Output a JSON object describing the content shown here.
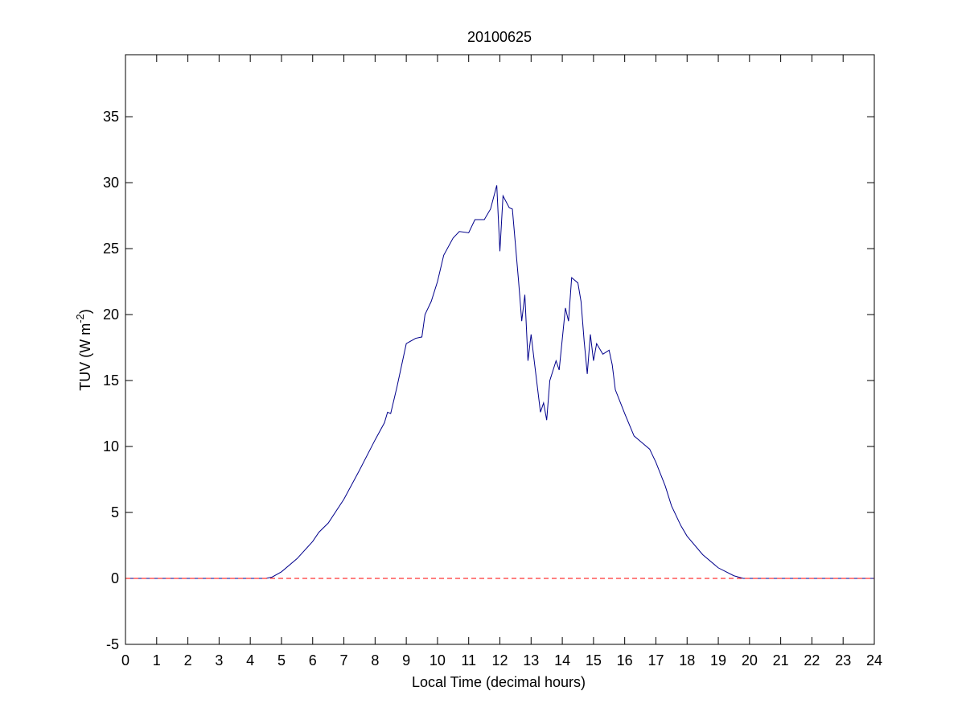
{
  "chart_data": {
    "type": "line",
    "title": "20100625",
    "xlabel": "Local Time (decimal hours)",
    "ylabel": [
      "TUV (W m",
      "-2",
      ")"
    ],
    "xlim": [
      0,
      24
    ],
    "ylim": [
      -5,
      39.7
    ],
    "xticks": [
      0,
      1,
      2,
      3,
      4,
      5,
      6,
      7,
      8,
      9,
      10,
      11,
      12,
      13,
      14,
      15,
      16,
      17,
      18,
      19,
      20,
      21,
      22,
      23,
      24
    ],
    "yticks": [
      -5,
      0,
      5,
      10,
      15,
      20,
      25,
      30,
      35
    ],
    "grid": false,
    "series": [
      {
        "color": "#00008b",
        "dashed": false,
        "x": [
          0,
          4.5,
          4.7,
          5,
          5.5,
          6,
          6.2,
          6.5,
          7,
          7.5,
          8,
          8.3,
          8.4,
          8.5,
          8.7,
          9,
          9.3,
          9.5,
          9.6,
          9.8,
          10,
          10.2,
          10.5,
          10.7,
          11,
          11.2,
          11.5,
          11.7,
          11.9,
          12,
          12.1,
          12.3,
          12.4,
          12.6,
          12.7,
          12.8,
          12.9,
          13,
          13.1,
          13.3,
          13.4,
          13.5,
          13.6,
          13.8,
          13.9,
          14.1,
          14.2,
          14.3,
          14.5,
          14.6,
          14.7,
          14.8,
          14.9,
          15,
          15.1,
          15.3,
          15.5,
          15.6,
          15.7,
          16,
          16.3,
          16.5,
          16.8,
          17,
          17.3,
          17.5,
          17.8,
          18,
          18.5,
          19,
          19.5,
          19.8,
          24
        ],
        "values": [
          0,
          0,
          0.1,
          0.5,
          1.5,
          2.8,
          3.5,
          4.2,
          6,
          8.2,
          10.5,
          11.8,
          12.6,
          12.5,
          14.5,
          17.8,
          18.2,
          18.3,
          20,
          21,
          22.5,
          24.5,
          25.8,
          26.3,
          26.2,
          27.2,
          27.2,
          28,
          29.8,
          24.8,
          29,
          28.1,
          28,
          22.5,
          19.5,
          21.5,
          16.5,
          18.5,
          16.5,
          12.6,
          13.3,
          12,
          15,
          16.5,
          15.8,
          20.5,
          19.5,
          22.8,
          22.4,
          21,
          18,
          15.5,
          18.5,
          16.5,
          17.8,
          17,
          17.3,
          16.2,
          14.3,
          12.5,
          10.8,
          10.4,
          9.8,
          8.8,
          7,
          5.5,
          4,
          3.2,
          1.8,
          0.8,
          0.2,
          0,
          0
        ]
      },
      {
        "color": "#ff0000",
        "dashed": true,
        "x": [
          0,
          24
        ],
        "values": [
          0,
          0
        ]
      }
    ]
  }
}
